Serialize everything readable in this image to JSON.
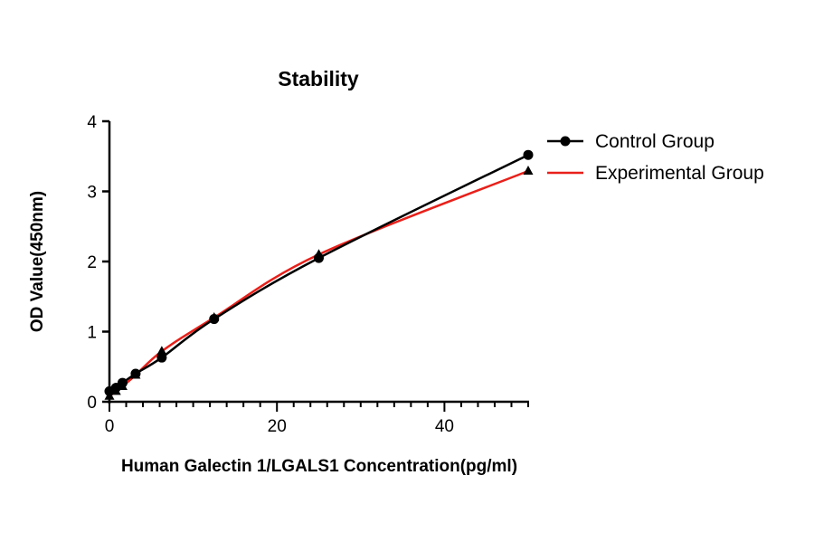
{
  "chart_data": {
    "type": "line",
    "title": "Stability",
    "xlabel": "Human Galectin 1/LGALS1 Concentration(pg/ml)",
    "ylabel": "OD Value(450nm)",
    "xlim": [
      0,
      50
    ],
    "ylim": [
      0,
      4
    ],
    "xticks": [
      0,
      20,
      40
    ],
    "yticks": [
      0,
      1,
      2,
      3,
      4
    ],
    "grid": false,
    "legend_position": "right",
    "series": [
      {
        "name": "Control Group",
        "marker": "circle",
        "color": "#000000",
        "x": [
          0,
          0.78,
          1.56,
          3.125,
          6.25,
          12.5,
          25,
          50
        ],
        "y": [
          0.15,
          0.2,
          0.27,
          0.4,
          0.63,
          1.18,
          2.05,
          3.52
        ]
      },
      {
        "name": "Experimental Group",
        "marker": "triangle",
        "color": "#e8201a",
        "x": [
          0,
          0.78,
          1.56,
          3.125,
          6.25,
          12.5,
          25,
          50
        ],
        "y": [
          0.08,
          0.15,
          0.22,
          0.38,
          0.72,
          1.2,
          2.1,
          3.29
        ]
      }
    ]
  }
}
